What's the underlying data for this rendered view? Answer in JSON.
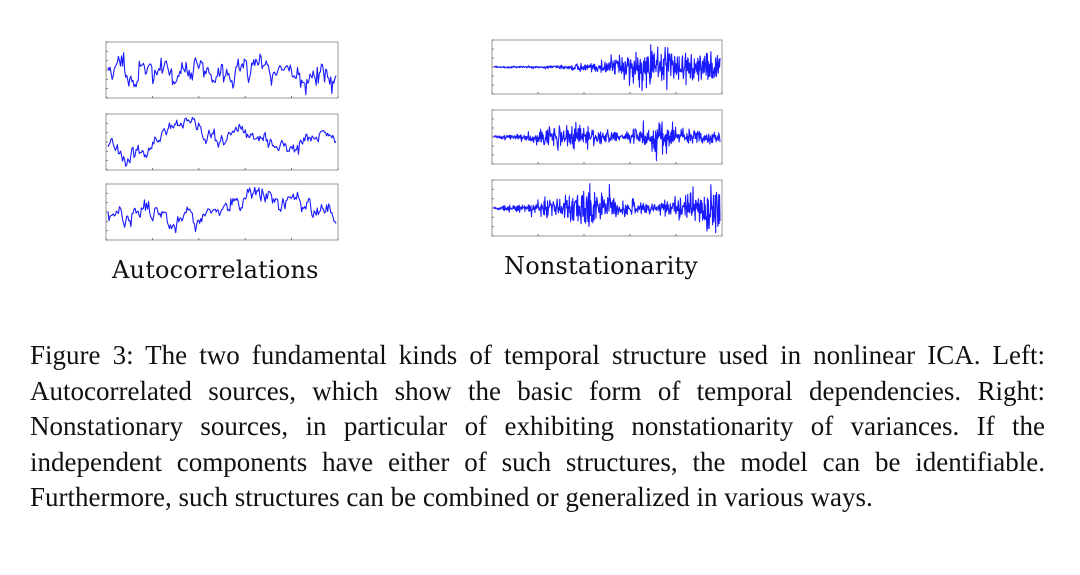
{
  "figure": {
    "panels": [
      {
        "label": "Autocorrelations",
        "plots": [
          {
            "kind": "autocorrelated",
            "seed": 11
          },
          {
            "kind": "autocorrelated",
            "seed": 23
          },
          {
            "kind": "autocorrelated",
            "seed": 37
          }
        ]
      },
      {
        "label": "Nonstationarity",
        "plots": [
          {
            "kind": "nonstationary",
            "seed": 5,
            "envelope": [
              0.05,
              0.05,
              0.08,
              0.3,
              0.7,
              1.0,
              0.9,
              0.6
            ]
          },
          {
            "kind": "nonstationary",
            "seed": 41,
            "envelope": [
              0.1,
              0.2,
              0.7,
              0.5,
              0.2,
              0.9,
              0.4,
              0.3
            ]
          },
          {
            "kind": "nonstationary",
            "seed": 73,
            "envelope": [
              0.08,
              0.2,
              0.5,
              1.0,
              0.4,
              0.15,
              0.6,
              0.9
            ]
          }
        ]
      }
    ],
    "line_color": "#1a1aff",
    "caption": "Figure 3:  The two fundamental kinds of temporal structure used in nonlinear ICA. Left: Autocorrelated sources, which show the basic form of temporal dependencies. Right: Nonstationary sources, in particular of exhibiting nonstationarity of variances. If the independent components have either of such structures, the model can be identifiable. Furthermore, such structures can be combined or generalized in various ways."
  }
}
